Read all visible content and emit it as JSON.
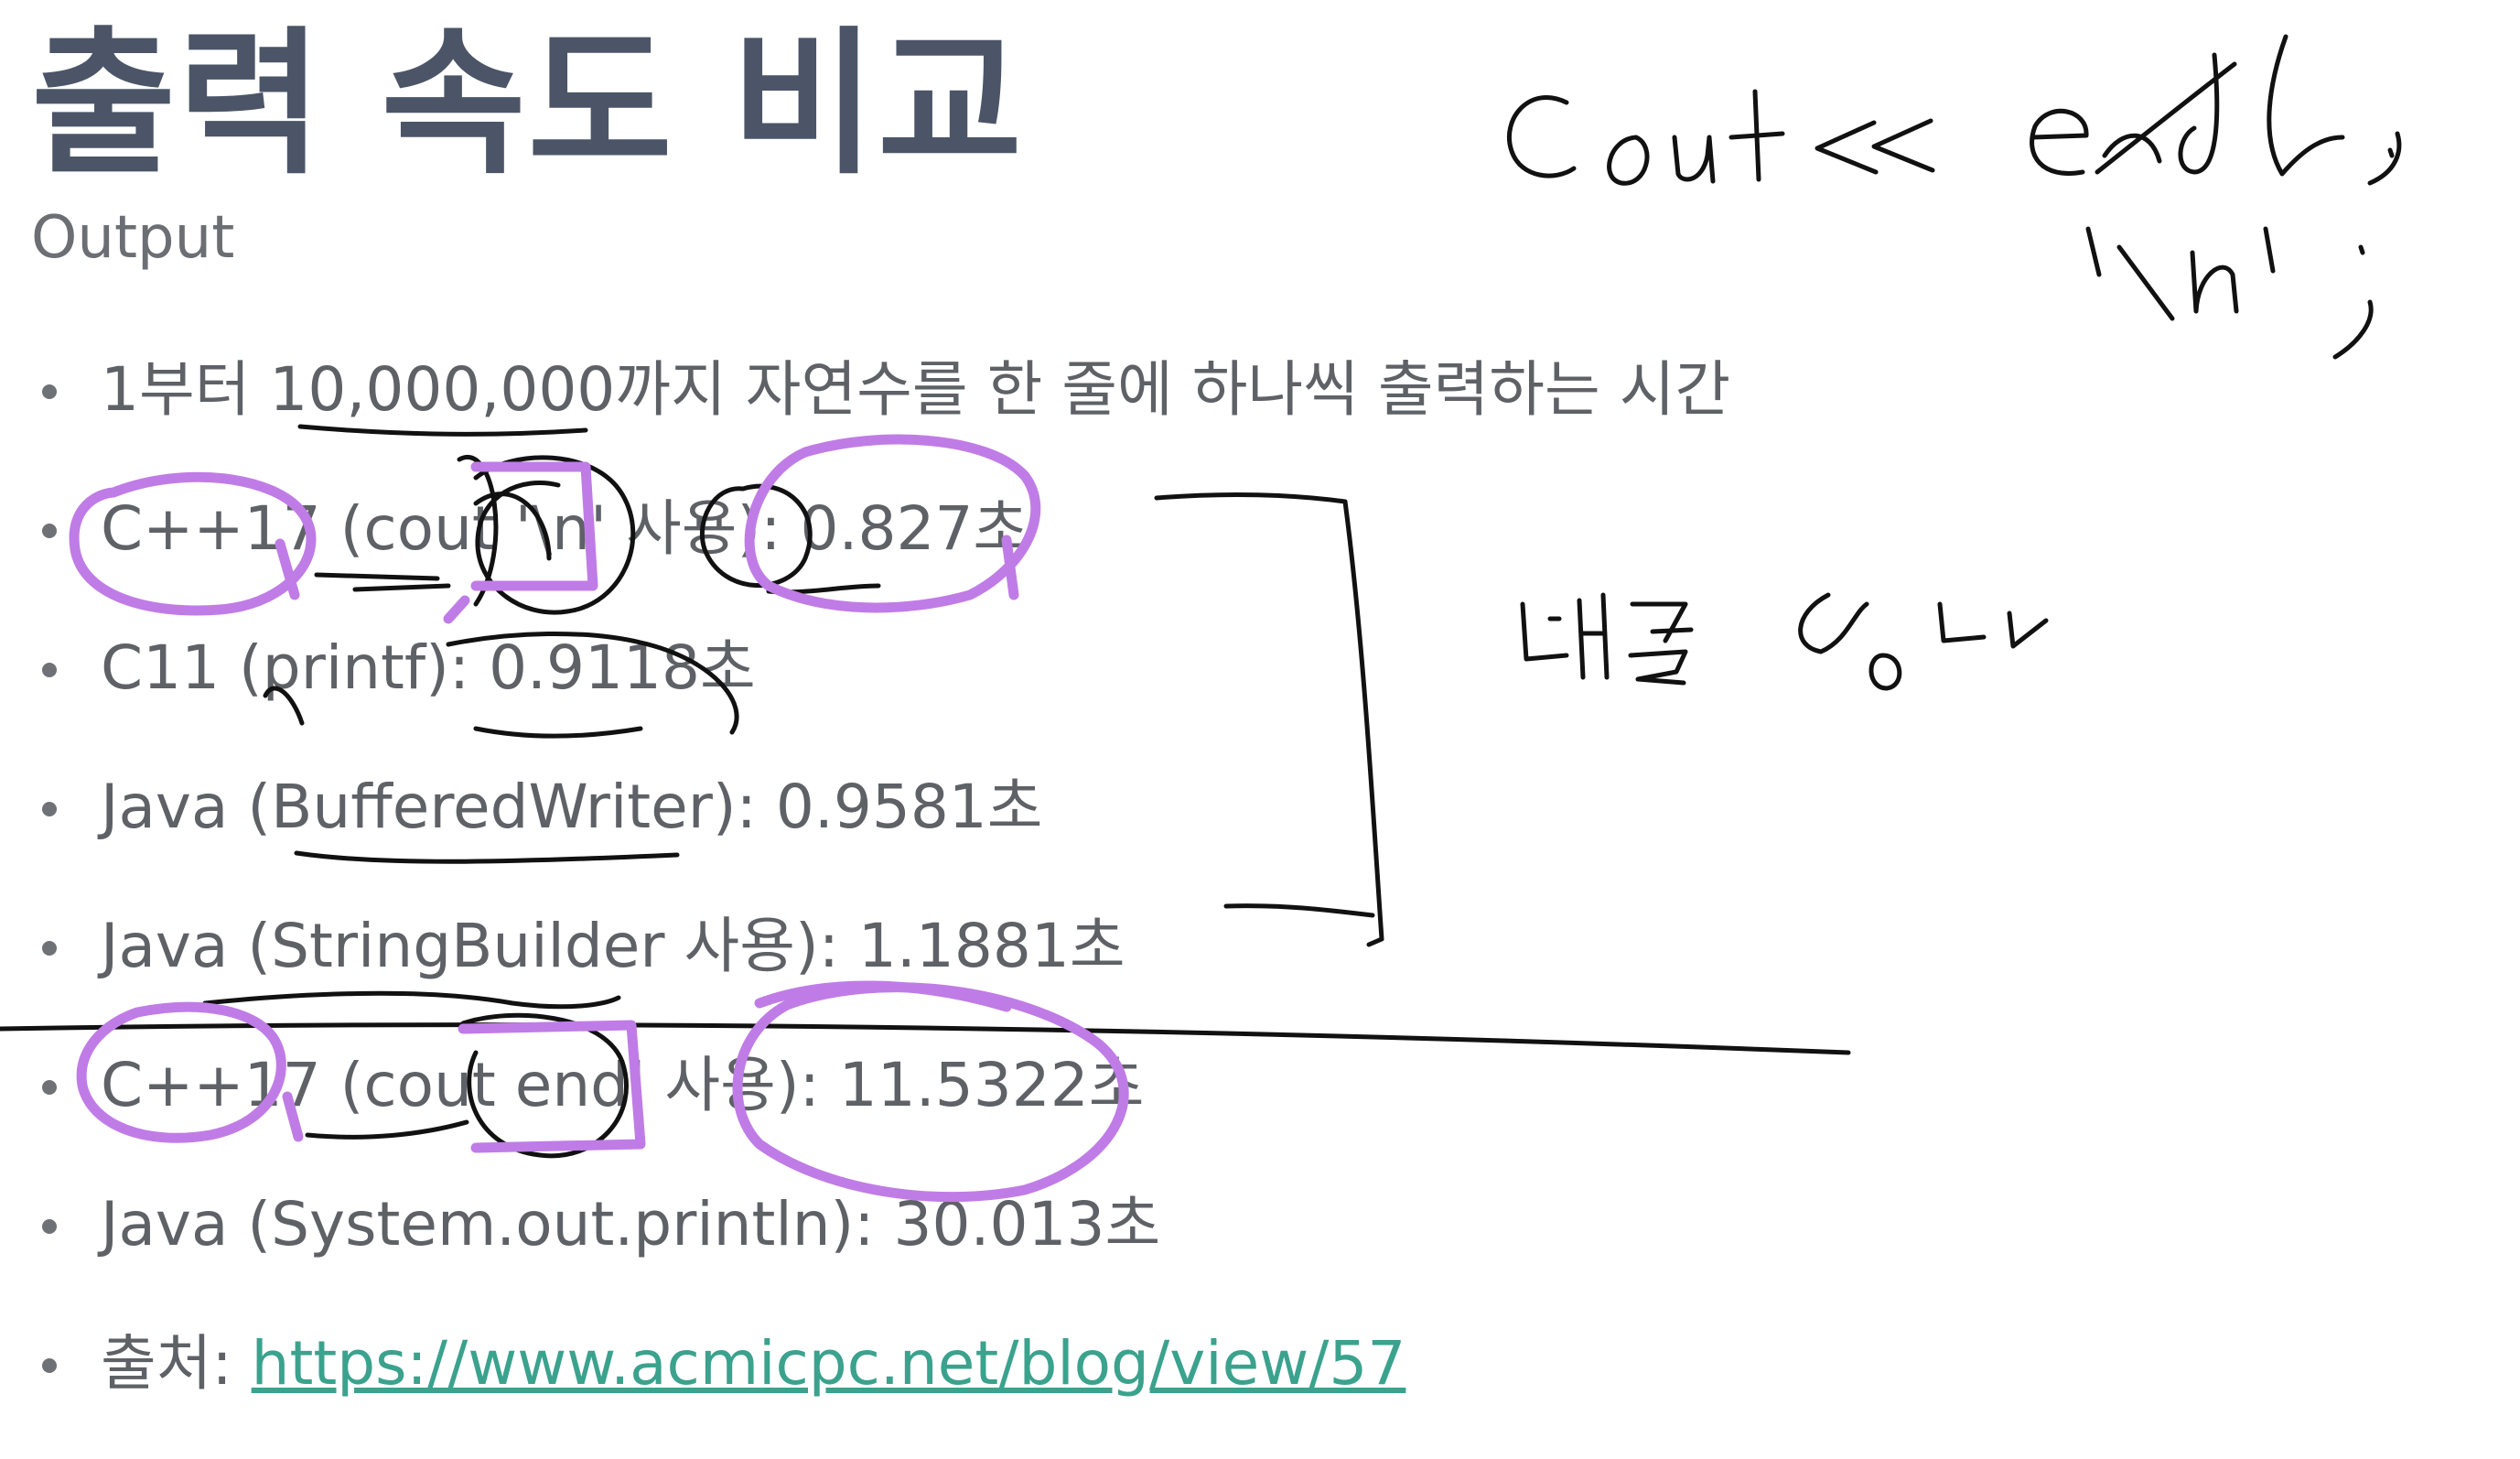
{
  "slide": {
    "title": "출력 속도 비교",
    "subtitle": "Output",
    "bullets": [
      {
        "text": "1부터 10,000,000까지 자연수를 한 줄에 하나씩 출력하는 시간"
      },
      {
        "text": "C++17 (cout '\\n' 사용): 0.827초"
      },
      {
        "text": "C11 (printf): 0.9118초"
      },
      {
        "text": "Java (BufferedWriter): 0.9581초"
      },
      {
        "text": "Java (StringBuilder 사용): 1.1881초"
      },
      {
        "text": "C++17 (cout endl 사용): 11.5322초"
      },
      {
        "text": "Java (System.out.println): 30.013초"
      },
      {
        "text": "출처: ",
        "link": "https://www.acmicpc.net/blog/view/57"
      }
    ]
  },
  "handwriting": {
    "note_cout": "cout<< endl;",
    "note_newline": "'\\n';",
    "note_fast": "빠른 방법"
  },
  "colors": {
    "title": "#4b5567",
    "body_text": "#5e6166",
    "link": "#3aa28d",
    "pen_black": "#111111",
    "pen_purple": "#c07ce6"
  }
}
